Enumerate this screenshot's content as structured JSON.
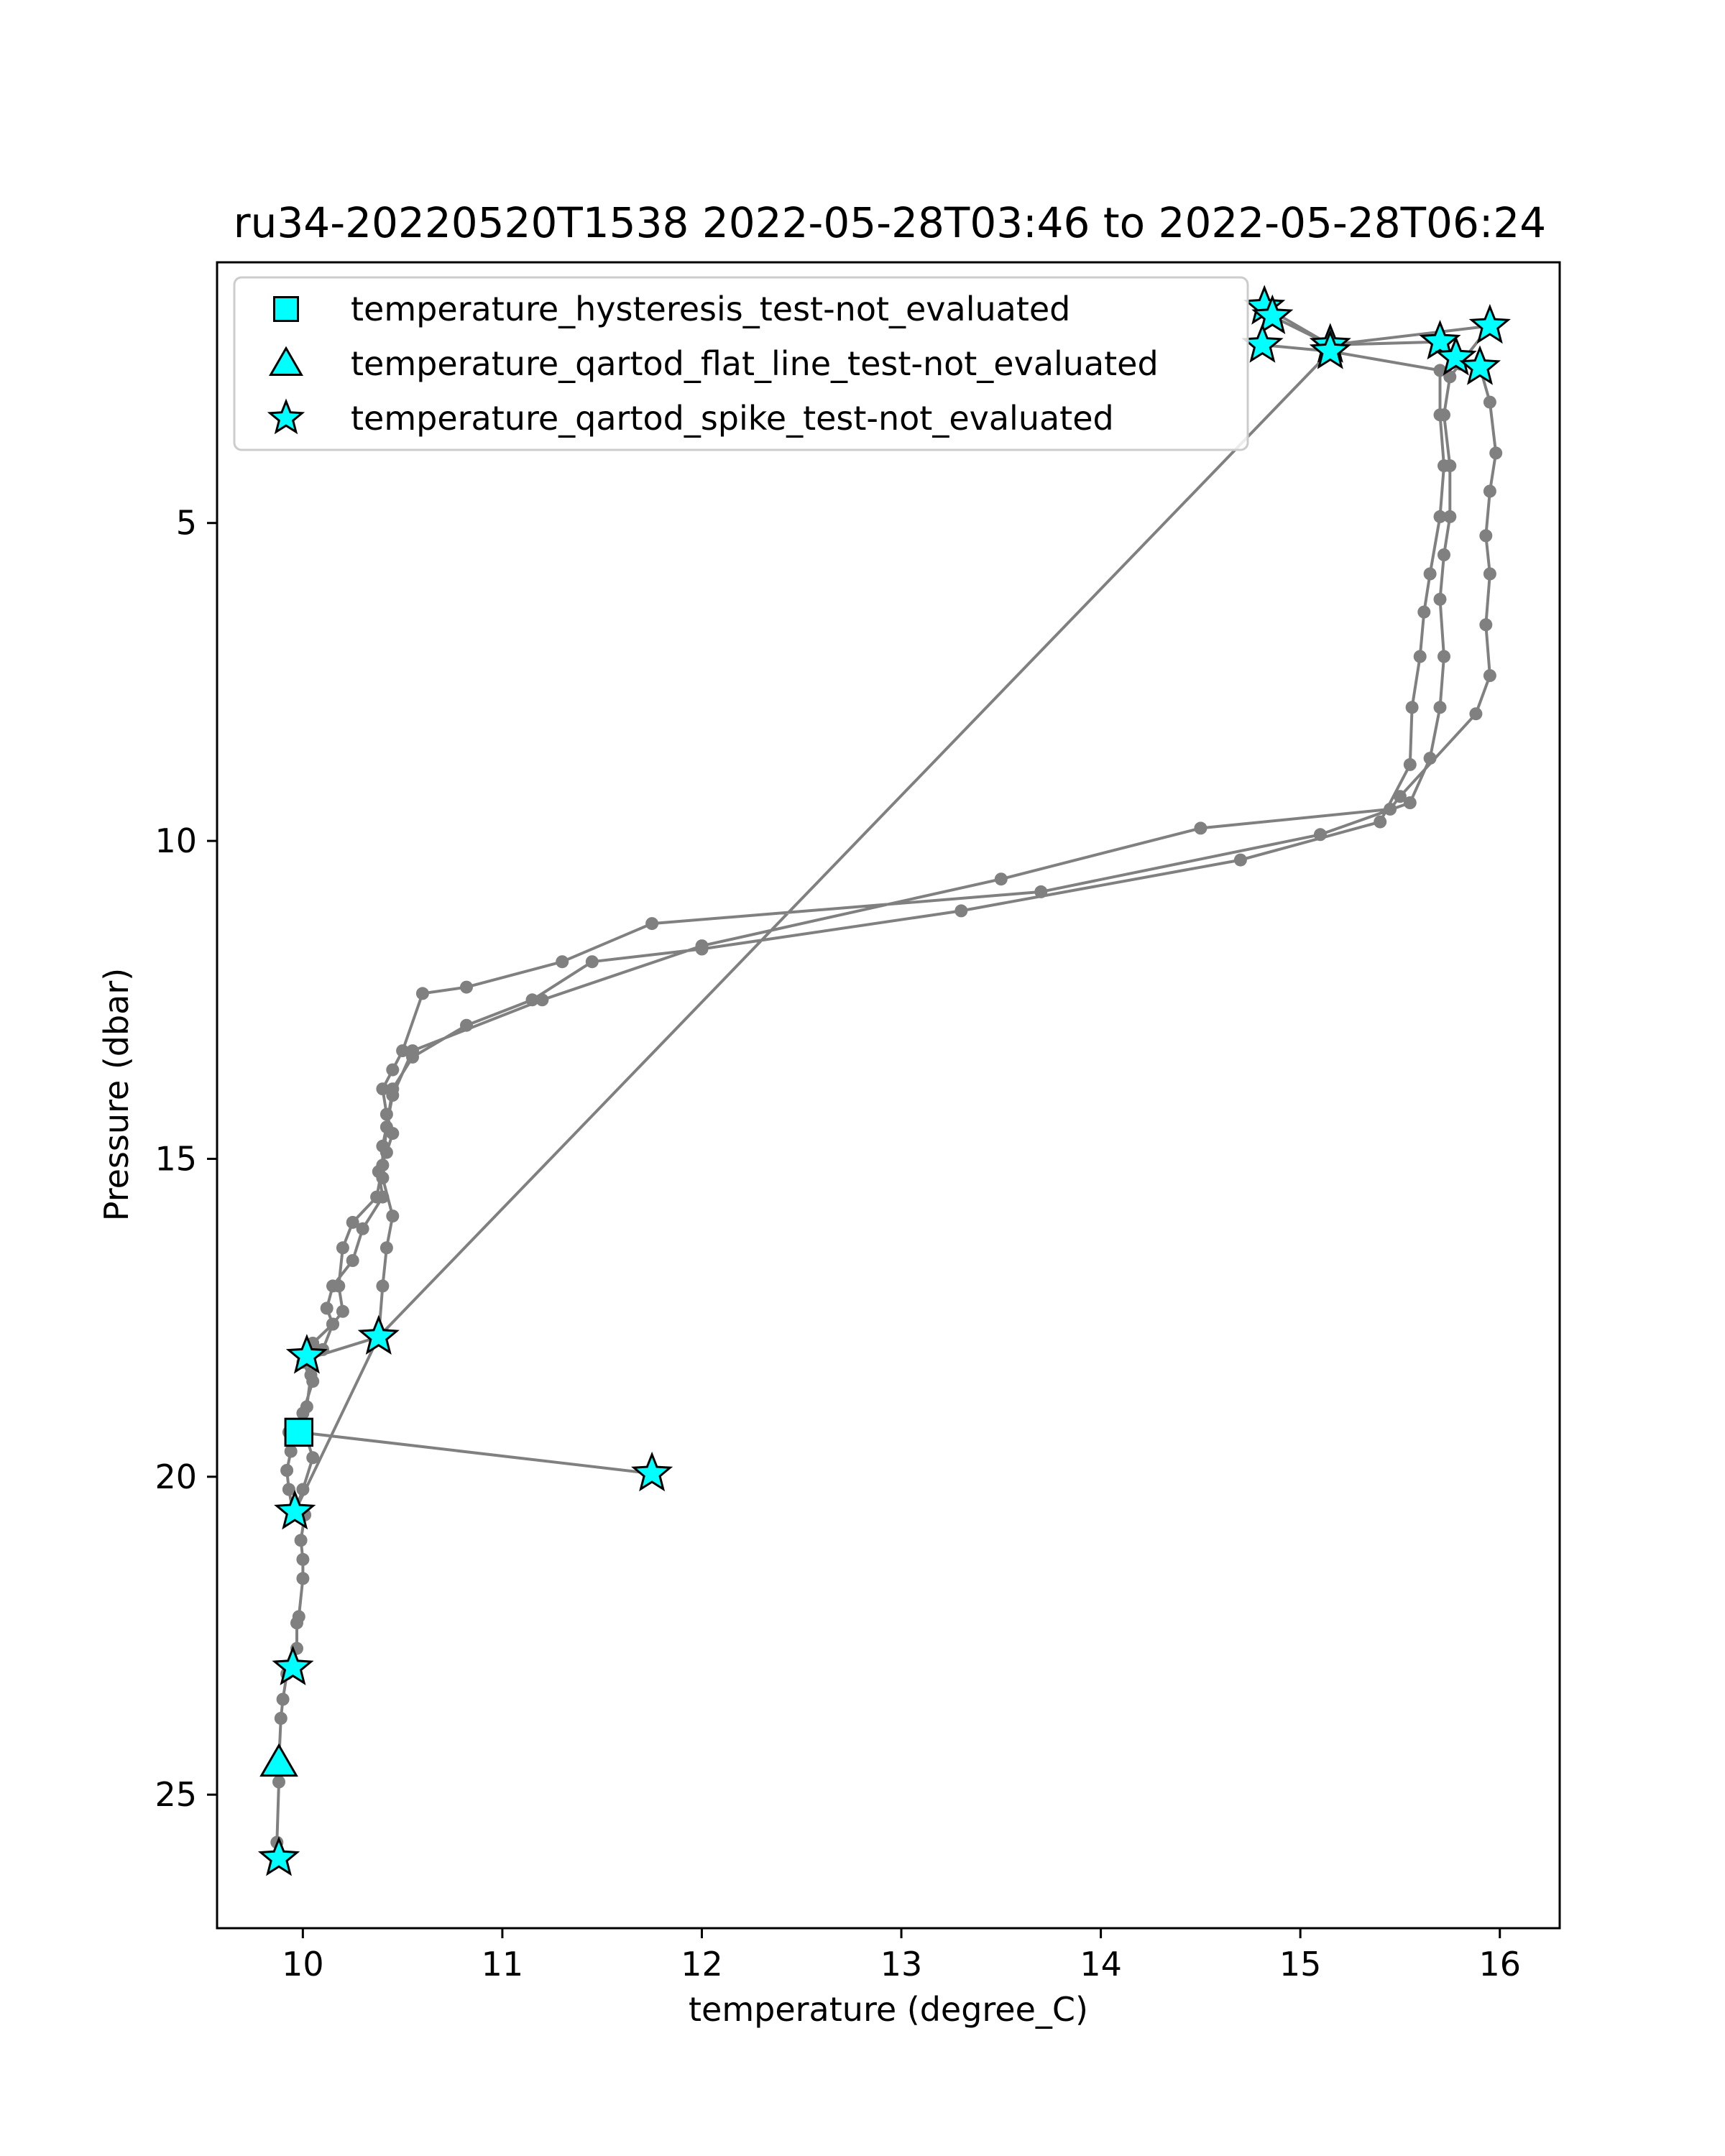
{
  "chart_data": {
    "type": "scatter",
    "title": "ru34-20220520T1538 2022-05-28T03:46 to 2022-05-28T06:24",
    "xlabel": "temperature (degree_C)",
    "ylabel": "Pressure (dbar)",
    "xlim": [
      9.57,
      16.3
    ],
    "ylim": [
      27.1,
      0.9
    ],
    "y_inverted": true,
    "xticks": [
      10,
      11,
      12,
      13,
      14,
      15,
      16
    ],
    "yticks": [
      5,
      10,
      15,
      20,
      25
    ],
    "grid": false,
    "legend_position": "top-left",
    "colors": {
      "profile_line": "#808080",
      "flag_fill": "#00ffff",
      "flag_edge": "#000000",
      "axes": "#000000"
    },
    "profile": {
      "name": "temperature",
      "points": [
        [
          9.88,
          26.0
        ],
        [
          9.87,
          25.75
        ],
        [
          9.88,
          24.8
        ],
        [
          9.88,
          24.5
        ],
        [
          9.89,
          23.8
        ],
        [
          9.9,
          23.5
        ],
        [
          9.92,
          23.1
        ],
        [
          9.95,
          23.0
        ],
        [
          9.97,
          22.7
        ],
        [
          9.97,
          22.3
        ],
        [
          9.98,
          22.2
        ],
        [
          10.0,
          21.6
        ],
        [
          10.0,
          21.3
        ],
        [
          9.99,
          21.0
        ],
        [
          10.01,
          20.6
        ],
        [
          9.95,
          20.55
        ],
        [
          9.93,
          20.2
        ],
        [
          9.92,
          19.9
        ],
        [
          9.94,
          19.6
        ],
        [
          9.93,
          19.3
        ],
        [
          9.98,
          19.3
        ],
        [
          11.75,
          19.95
        ],
        [
          9.98,
          19.3
        ],
        [
          10.0,
          19.0
        ],
        [
          10.05,
          18.5
        ],
        [
          10.0,
          18.2
        ],
        [
          10.1,
          18.0
        ],
        [
          10.15,
          17.6
        ],
        [
          10.12,
          17.35
        ],
        [
          10.15,
          17.0
        ],
        [
          10.25,
          16.6
        ],
        [
          10.3,
          16.1
        ],
        [
          10.4,
          15.6
        ],
        [
          10.38,
          15.2
        ],
        [
          10.42,
          14.9
        ],
        [
          10.45,
          14.6
        ],
        [
          10.42,
          14.3
        ],
        [
          10.4,
          13.9
        ],
        [
          10.45,
          13.6
        ],
        [
          10.5,
          13.3
        ],
        [
          10.6,
          12.4
        ],
        [
          10.82,
          12.3
        ],
        [
          11.3,
          11.9
        ],
        [
          11.75,
          11.3
        ],
        [
          13.7,
          10.8
        ],
        [
          15.1,
          9.9
        ],
        [
          15.55,
          9.4
        ],
        [
          15.65,
          8.7
        ],
        [
          15.7,
          7.9
        ],
        [
          15.72,
          7.1
        ],
        [
          15.7,
          6.2
        ],
        [
          15.72,
          5.5
        ],
        [
          15.75,
          4.9
        ],
        [
          15.75,
          4.1
        ],
        [
          15.72,
          3.3
        ],
        [
          15.75,
          2.7
        ],
        [
          15.8,
          2.5
        ],
        [
          15.95,
          1.9
        ],
        [
          15.15,
          2.2
        ],
        [
          14.82,
          1.6
        ],
        [
          14.86,
          1.75
        ],
        [
          15.15,
          2.2
        ],
        [
          15.7,
          2.15
        ],
        [
          15.78,
          2.4
        ],
        [
          15.9,
          2.55
        ],
        [
          15.95,
          3.1
        ],
        [
          15.98,
          3.9
        ],
        [
          15.95,
          4.5
        ],
        [
          15.93,
          5.2
        ],
        [
          15.95,
          5.8
        ],
        [
          15.93,
          6.6
        ],
        [
          15.95,
          7.4
        ],
        [
          15.88,
          8.0
        ],
        [
          15.5,
          9.3
        ],
        [
          15.45,
          9.5
        ],
        [
          14.5,
          9.8
        ],
        [
          13.5,
          10.6
        ],
        [
          12.0,
          11.65
        ],
        [
          11.2,
          12.5
        ],
        [
          10.55,
          13.3
        ],
        [
          10.45,
          14.0
        ],
        [
          10.4,
          14.8
        ],
        [
          10.4,
          15.3
        ],
        [
          10.45,
          15.9
        ],
        [
          10.42,
          16.4
        ],
        [
          10.4,
          17.0
        ],
        [
          10.38,
          17.8
        ],
        [
          10.02,
          18.15
        ],
        [
          10.04,
          18.4
        ],
        [
          10.02,
          18.9
        ],
        [
          10.0,
          19.2
        ],
        [
          10.05,
          19.7
        ],
        [
          10.0,
          20.2
        ],
        [
          9.96,
          20.55
        ],
        [
          10.38,
          17.8
        ],
        [
          15.15,
          2.3
        ],
        [
          14.81,
          2.2
        ],
        [
          15.15,
          2.3
        ],
        [
          15.7,
          2.6
        ],
        [
          15.7,
          3.3
        ],
        [
          15.72,
          4.1
        ],
        [
          15.7,
          4.9
        ],
        [
          15.65,
          5.8
        ],
        [
          15.62,
          6.4
        ],
        [
          15.6,
          7.1
        ],
        [
          15.56,
          7.9
        ],
        [
          15.55,
          8.8
        ],
        [
          15.4,
          9.7
        ],
        [
          14.7,
          10.3
        ],
        [
          13.3,
          11.1
        ],
        [
          12.0,
          11.7
        ],
        [
          11.45,
          11.9
        ],
        [
          11.15,
          12.5
        ],
        [
          10.82,
          12.9
        ],
        [
          10.55,
          13.4
        ],
        [
          10.45,
          13.9
        ],
        [
          10.42,
          14.5
        ],
        [
          10.4,
          15.1
        ],
        [
          10.37,
          15.6
        ],
        [
          10.25,
          16.0
        ],
        [
          10.2,
          16.4
        ],
        [
          10.18,
          17.0
        ],
        [
          10.2,
          17.4
        ],
        [
          10.15,
          17.6
        ],
        [
          10.05,
          17.9
        ],
        [
          10.02,
          18.1
        ]
      ]
    },
    "series": [
      {
        "name": "temperature_hysteresis_test-not_evaluated",
        "marker": "square",
        "points": [
          [
            9.98,
            19.3
          ]
        ]
      },
      {
        "name": "temperature_qartod_flat_line_test-not_evaluated",
        "marker": "triangle",
        "points": [
          [
            9.88,
            24.5
          ]
        ]
      },
      {
        "name": "temperature_qartod_spike_test-not_evaluated",
        "marker": "star",
        "points": [
          [
            14.82,
            1.6
          ],
          [
            14.86,
            1.75
          ],
          [
            14.81,
            2.2
          ],
          [
            15.15,
            2.2
          ],
          [
            15.15,
            2.3
          ],
          [
            15.7,
            2.15
          ],
          [
            15.78,
            2.4
          ],
          [
            15.9,
            2.55
          ],
          [
            15.95,
            1.9
          ],
          [
            10.02,
            18.1
          ],
          [
            10.38,
            17.8
          ],
          [
            11.75,
            19.95
          ],
          [
            9.96,
            20.55
          ],
          [
            9.95,
            23.0
          ],
          [
            9.88,
            26.0
          ]
        ]
      }
    ]
  }
}
